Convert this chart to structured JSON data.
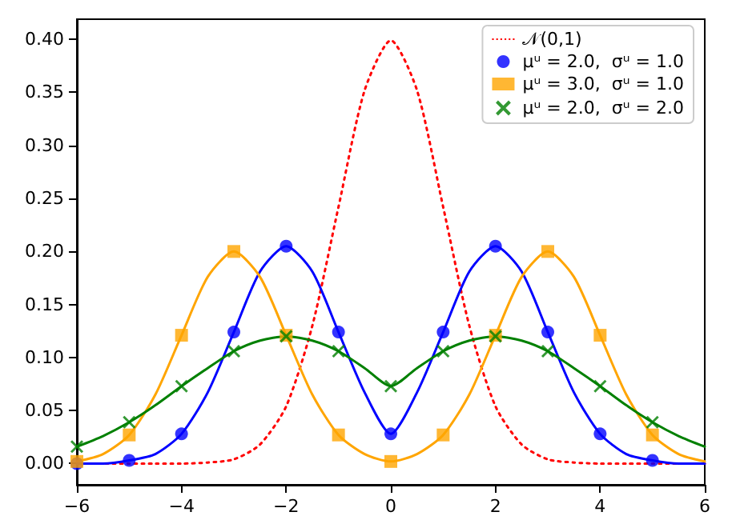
{
  "chart_data": {
    "type": "line",
    "xlim": [
      -6,
      6
    ],
    "xticks": [
      -6,
      -4,
      -2,
      0,
      2,
      4,
      6
    ],
    "ylim": [
      -0.02,
      0.419
    ],
    "yticks": [
      {
        "value": 0,
        "label": "0.00"
      },
      {
        "value": 0.05,
        "label": "0.05"
      },
      {
        "value": 0.1,
        "label": "0.10"
      },
      {
        "value": 0.15,
        "label": "0.15"
      },
      {
        "value": 0.2,
        "label": "0.20"
      },
      {
        "value": 0.25,
        "label": "0.25"
      },
      {
        "value": 0.3,
        "label": "0.30"
      },
      {
        "value": 0.35,
        "label": "0.35"
      },
      {
        "value": 0.4,
        "label": "0.40"
      }
    ],
    "grid": false,
    "legend": "top right",
    "series": [
      {
        "name": "𝒩(0,1)",
        "color": "#ff0000",
        "line_style": "dotted",
        "marker": "none",
        "x": [
          -6,
          -5.5,
          -5,
          -4.5,
          -4,
          -3.5,
          -3,
          -2.5,
          -2,
          -1.5,
          -1,
          -0.5,
          0,
          0.5,
          1,
          1.5,
          2,
          2.5,
          3,
          3.5,
          4,
          4.5,
          5,
          5.5,
          6
        ],
        "values": [
          0,
          0,
          0,
          0,
          0,
          0.001,
          0.004,
          0.018,
          0.054,
          0.13,
          0.242,
          0.352,
          0.399,
          0.352,
          0.242,
          0.13,
          0.054,
          0.018,
          0.004,
          0.001,
          0,
          0,
          0,
          0,
          0
        ]
      },
      {
        "color": "#0000ff",
        "line_style": "solid",
        "marker": "none",
        "x": [
          -6,
          -5.5,
          -5,
          -4.5,
          -4,
          -3.5,
          -3,
          -2.5,
          -2,
          -1.5,
          -1,
          -0.5,
          0,
          0.5,
          1,
          1.5,
          2,
          2.5,
          3,
          3.5,
          4,
          4.5,
          5,
          5.5,
          6
        ],
        "values": [
          0,
          0,
          0.003,
          0.009,
          0.028,
          0.067,
          0.124,
          0.181,
          0.205,
          0.181,
          0.124,
          0.067,
          0.028,
          0.067,
          0.124,
          0.181,
          0.205,
          0.181,
          0.124,
          0.067,
          0.028,
          0.009,
          0.003,
          0,
          0
        ]
      },
      {
        "color": "#ffa500",
        "line_style": "solid",
        "marker": "none",
        "x": [
          -6,
          -5.5,
          -5,
          -4.5,
          -4,
          -3.5,
          -3,
          -2.5,
          -2,
          -1.5,
          -1,
          -0.5,
          0,
          0.5,
          1,
          1.5,
          2,
          2.5,
          3,
          3.5,
          4,
          4.5,
          5,
          5.5,
          6
        ],
        "values": [
          0.002,
          0.009,
          0.027,
          0.065,
          0.121,
          0.176,
          0.2,
          0.176,
          0.121,
          0.065,
          0.027,
          0.009,
          0.002,
          0.009,
          0.027,
          0.065,
          0.121,
          0.176,
          0.2,
          0.176,
          0.121,
          0.065,
          0.027,
          0.009,
          0.002
        ]
      },
      {
        "color": "#008000",
        "line_style": "solid",
        "marker": "none",
        "x": [
          -6,
          -5.5,
          -5,
          -4.5,
          -4,
          -3.5,
          -3,
          -2.5,
          -2,
          -1.5,
          -1,
          -0.5,
          0,
          0.5,
          1,
          1.5,
          2,
          2.5,
          3,
          3.5,
          4,
          4.5,
          5,
          5.5,
          6
        ],
        "values": [
          0.016,
          0.026,
          0.039,
          0.055,
          0.073,
          0.09,
          0.106,
          0.116,
          0.12,
          0.116,
          0.106,
          0.09,
          0.073,
          0.09,
          0.106,
          0.116,
          0.12,
          0.116,
          0.106,
          0.09,
          0.073,
          0.055,
          0.039,
          0.026,
          0.016
        ]
      },
      {
        "type": "scatter",
        "name": "μᵘ = 2.0,  σᵘ = 1.0",
        "color": "#0000ff",
        "marker": "circle",
        "x": [
          -6,
          -5,
          -4,
          -3,
          -2,
          -1,
          0,
          1,
          2,
          3,
          4,
          5
        ],
        "values": [
          0,
          0.003,
          0.028,
          0.124,
          0.205,
          0.124,
          0.028,
          0.124,
          0.205,
          0.124,
          0.028,
          0.003
        ]
      },
      {
        "type": "scatter",
        "name": "μᵘ = 3.0,  σᵘ = 1.0",
        "color": "#ffa500",
        "marker": "square",
        "x": [
          -6,
          -5,
          -4,
          -3,
          -2,
          -1,
          0,
          1,
          2,
          3,
          4,
          5
        ],
        "values": [
          0.002,
          0.027,
          0.121,
          0.2,
          0.121,
          0.027,
          0.002,
          0.027,
          0.121,
          0.2,
          0.121,
          0.027
        ]
      },
      {
        "type": "scatter",
        "name": "μᵘ = 2.0,  σᵘ = 2.0",
        "color": "#008000",
        "marker": "cross",
        "x": [
          -6,
          -5,
          -4,
          -3,
          -2,
          -1,
          0,
          1,
          2,
          3,
          4,
          5
        ],
        "values": [
          0.016,
          0.039,
          0.073,
          0.106,
          0.12,
          0.106,
          0.073,
          0.106,
          0.12,
          0.106,
          0.073,
          0.039
        ]
      }
    ]
  }
}
